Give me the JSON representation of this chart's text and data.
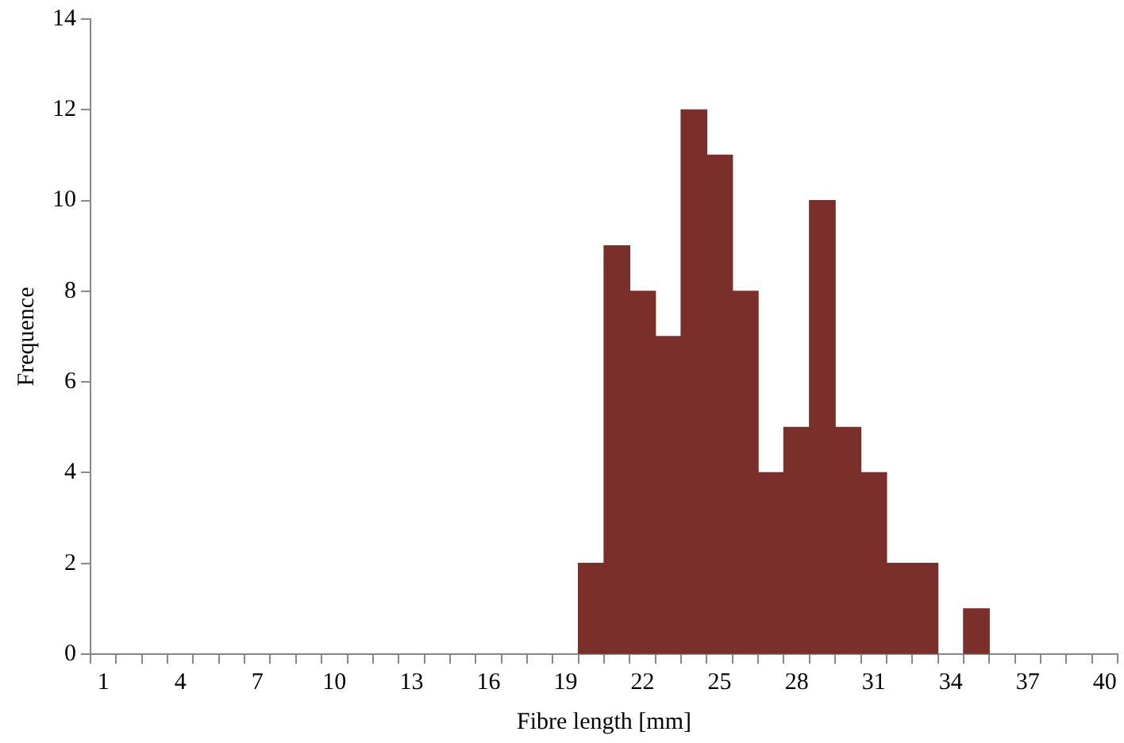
{
  "chart_data": {
    "type": "bar",
    "xlabel": "Fibre length [mm]",
    "ylabel": "Frequence",
    "categories": [
      "1",
      null,
      null,
      "4",
      null,
      null,
      "7",
      null,
      null,
      "10",
      null,
      null,
      "13",
      null,
      null,
      "16",
      null,
      null,
      "19",
      null,
      null,
      "22",
      null,
      null,
      "25",
      null,
      null,
      "28",
      null,
      null,
      "31",
      null,
      null,
      "34",
      null,
      null,
      "37",
      null,
      null,
      "40"
    ],
    "values": [
      null,
      null,
      null,
      null,
      null,
      null,
      null,
      null,
      null,
      null,
      null,
      null,
      null,
      null,
      null,
      null,
      null,
      null,
      null,
      2,
      9,
      8,
      7,
      12,
      11,
      8,
      4,
      5,
      10,
      5,
      4,
      2,
      2,
      null,
      1,
      null,
      null,
      null,
      null,
      null
    ],
    "color": "#7b2f2b",
    "ylim": [
      0,
      14
    ],
    "yticks": [
      0,
      2,
      4,
      6,
      8,
      10,
      12,
      14
    ],
    "grid": false,
    "legend": false
  }
}
